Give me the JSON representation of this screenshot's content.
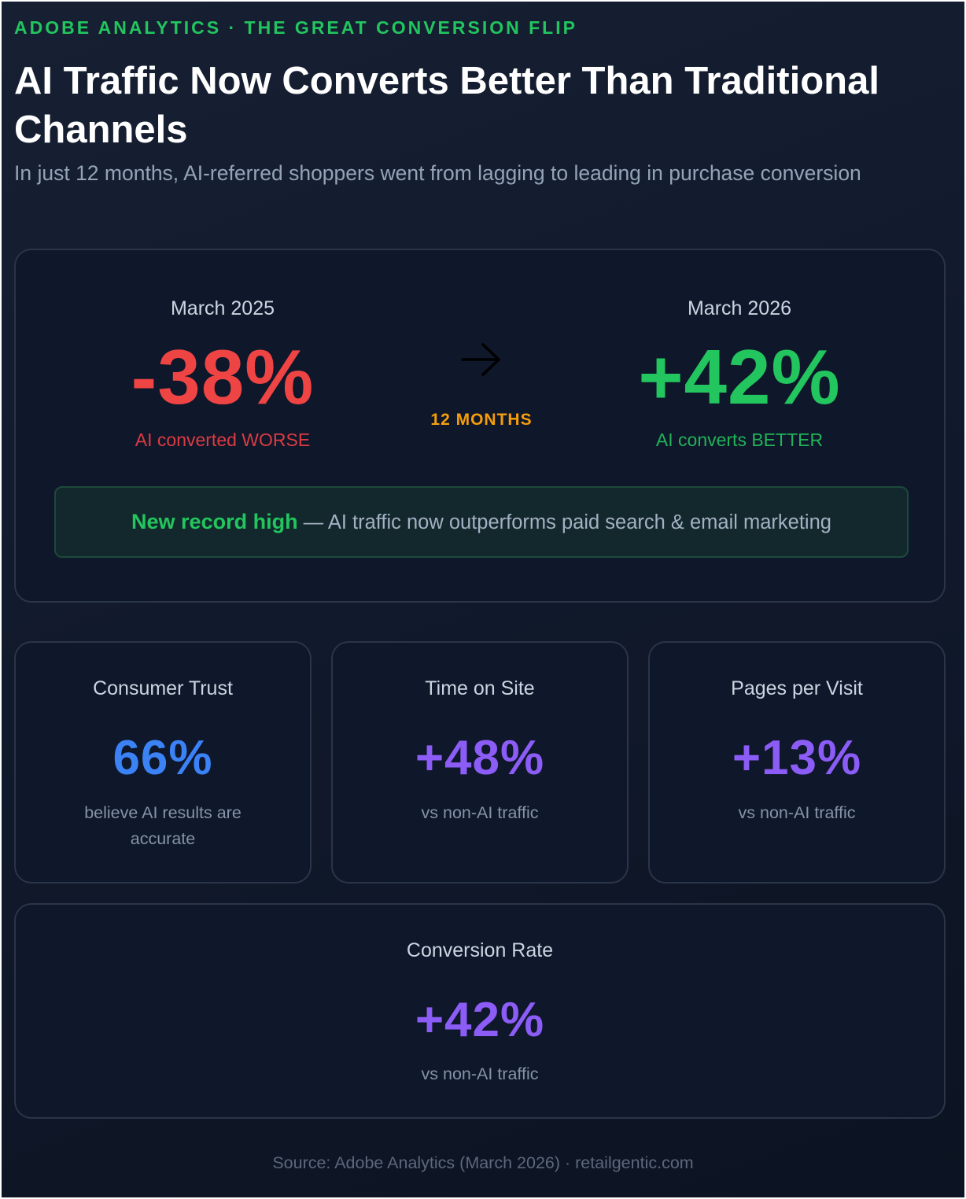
{
  "header": {
    "eyebrow": "ADOBE ANALYTICS · THE GREAT CONVERSION FLIP",
    "title": "AI Traffic Now Converts Better Than Traditional Channels",
    "subtitle": "In just 12 months, AI-referred shoppers went from lagging to leading in purchase conversion"
  },
  "hero": {
    "before": {
      "period": "March 2025",
      "value": "-38%",
      "caption": "AI converted WORSE"
    },
    "after": {
      "period": "March 2026",
      "value": "+42%",
      "caption": "AI converts BETTER"
    },
    "transition": {
      "icon": "arrow-right-icon",
      "label": "12 MONTHS"
    },
    "banner": {
      "highlight": "New record high",
      "text": " — AI traffic now outperforms paid search & email marketing"
    }
  },
  "stats": [
    {
      "label": "Consumer Trust",
      "value": "66%",
      "note": "believe AI results are accurate",
      "color": "#3b82f6"
    },
    {
      "label": "Time on Site",
      "value": "+48%",
      "note": "vs non-AI traffic",
      "color": "#8b5cf6"
    },
    {
      "label": "Pages per Visit",
      "value": "+13%",
      "note": "vs non-AI traffic",
      "color": "#8b5cf6"
    }
  ],
  "conversion": {
    "label": "Conversion Rate",
    "value": "+42%",
    "note": "vs non-AI traffic",
    "color": "#8b5cf6"
  },
  "footer": {
    "source": "Source: Adobe Analytics (March 2026) · retailgentic.com"
  },
  "colors": {
    "accent_green": "#22c55e",
    "negative_red": "#ef4444",
    "timeline_amber": "#f59e0b",
    "trust_blue": "#3b82f6",
    "metric_purple": "#8b5cf6"
  }
}
